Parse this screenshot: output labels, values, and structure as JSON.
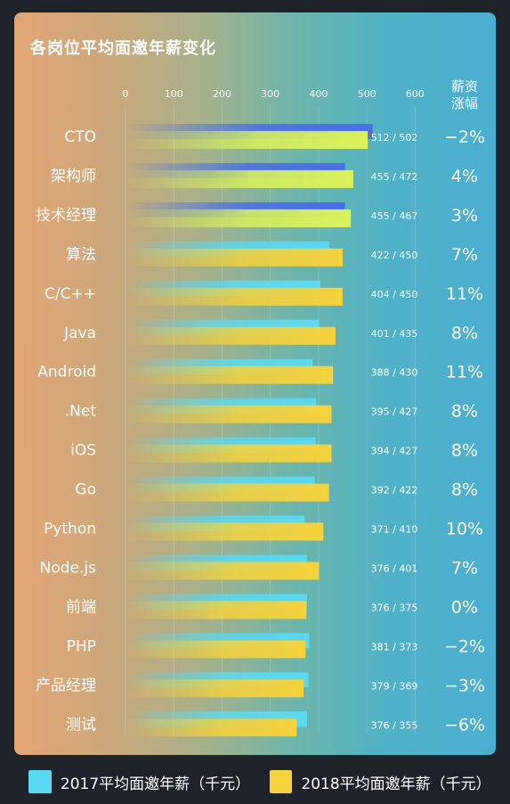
{
  "chart_data": {
    "type": "bar",
    "title": "各岗位平均面邀年薪变化",
    "change_header": [
      "薪资",
      "涨幅"
    ],
    "xlim": [
      0,
      600
    ],
    "xticks": [
      0,
      100,
      200,
      300,
      400,
      500,
      600
    ],
    "categories": [
      "CTO",
      "架构师",
      "技术经理",
      "算法",
      "C/C++",
      "Java",
      "Android",
      ".Net",
      "iOS",
      "Go",
      "Python",
      "Node.js",
      "前端",
      "PHP",
      "产品经理",
      "测试"
    ],
    "series": [
      {
        "name": "2017平均面邀年薪（千元）",
        "color": "#5ad9f2",
        "values": [
          512,
          455,
          455,
          422,
          404,
          401,
          388,
          395,
          394,
          392,
          371,
          376,
          376,
          381,
          379,
          376
        ]
      },
      {
        "name": "2018平均面邀年薪（千元）",
        "color": "#f6d23c",
        "values": [
          502,
          472,
          467,
          450,
          450,
          435,
          430,
          427,
          427,
          422,
          410,
          401,
          375,
          373,
          369,
          355
        ]
      }
    ],
    "value_labels": [
      "512 / 502",
      "455 / 472",
      "455 / 467",
      "422 / 450",
      "404 / 450",
      "401 / 435",
      "388 / 430",
      "395 / 427",
      "394 / 427",
      "392 / 422",
      "371 / 410",
      "376 / 401",
      "376 / 375",
      "381 / 373",
      "379 / 369",
      "376 / 355"
    ],
    "changes": [
      "−2%",
      "4%",
      "3%",
      "7%",
      "11%",
      "8%",
      "11%",
      "8%",
      "8%",
      "8%",
      "10%",
      "7%",
      "0%",
      "−2%",
      "−3%",
      "−6%"
    ],
    "highlight_color_2017": "#4a6de8",
    "highlight_color_2018": "#dbf25a",
    "legend_position": "bottom"
  }
}
